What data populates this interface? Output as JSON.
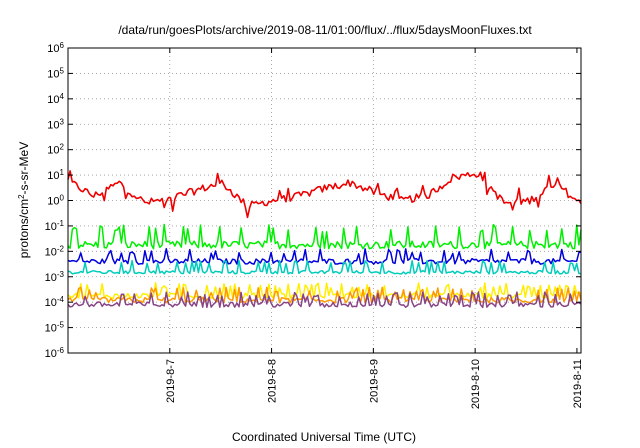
{
  "chart_data": {
    "type": "line",
    "title": "/data/run/goesPlots/archive/2019-08-11/01:00/flux/../flux/5daysMoonFluxes.txt",
    "xlabel": "Coordinated Universal Time (UTC)",
    "ylabel": {
      "main": "protons/cm",
      "sup": "2",
      "rest": "-s-sr-MeV"
    },
    "y_scale": "log",
    "ylim_exponents": [
      -6,
      6
    ],
    "y_ticks": [
      {
        "base": "10",
        "exp": "6"
      },
      {
        "base": "10",
        "exp": "5"
      },
      {
        "base": "10",
        "exp": "4"
      },
      {
        "base": "10",
        "exp": "3"
      },
      {
        "base": "10",
        "exp": "2"
      },
      {
        "base": "10",
        "exp": "1"
      },
      {
        "base": "10",
        "exp": "0"
      },
      {
        "base": "10",
        "exp": "-1"
      },
      {
        "base": "10",
        "exp": "-2"
      },
      {
        "base": "10",
        "exp": "-3"
      },
      {
        "base": "10",
        "exp": "-4"
      },
      {
        "base": "10",
        "exp": "-5"
      },
      {
        "base": "10",
        "exp": "-6"
      }
    ],
    "x_range_days": [
      "2019-08-06 00:00",
      "2019-08-11 01:00"
    ],
    "x_ticks": [
      "2019-8-7",
      "2019-8-8",
      "2019-8-9",
      "2019-8-10",
      "2019-8-11"
    ],
    "grid": true,
    "series": [
      {
        "color": "#ee0000",
        "base": 3.0,
        "var": [
          6,
          1.5,
          5,
          0.8,
          1.2,
          2.5,
          5,
          0.6,
          1.0,
          1.5,
          3,
          5,
          2.0,
          1.0,
          1.5,
          8,
          12,
          0.8,
          1.0,
          5,
          0.7
        ],
        "noise": 0.35
      },
      {
        "color": "#00ee00",
        "base": 0.018,
        "var": [],
        "noise": 0.35
      },
      {
        "color": "#0000dd",
        "base": 0.004,
        "var": [],
        "noise": 0.25
      },
      {
        "color": "#00ccbb",
        "base": 0.0015,
        "var": [],
        "noise": 0.15
      },
      {
        "color": "#ffee00",
        "base": 0.00018,
        "var": [],
        "noise": 0.25
      },
      {
        "color": "#ff9900",
        "base": 0.00012,
        "var": [],
        "noise": 0.25
      },
      {
        "color": "#884488",
        "base": 8e-05,
        "var": [],
        "noise": 0.25
      }
    ]
  }
}
